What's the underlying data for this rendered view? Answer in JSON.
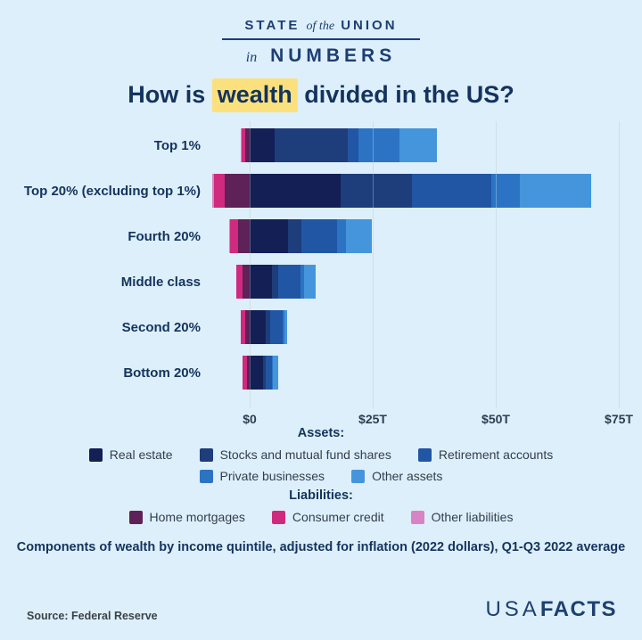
{
  "header": {
    "logo_state": "STATE",
    "logo_of_the": "of the",
    "logo_union": "UNION",
    "logo_in": "in",
    "logo_numbers": "NUMBERS"
  },
  "title": {
    "prefix": "How is",
    "highlight": "wealth",
    "suffix": "divided in the US?",
    "highlight_color": "#fbe17e"
  },
  "chart_data": {
    "type": "bar",
    "orientation": "horizontal",
    "stacked": true,
    "unit": "trillions of 2022 dollars",
    "categories": [
      "Top 1%",
      "Top 20% (excluding top 1%)",
      "Fourth 20%",
      "Middle class",
      "Second 20%",
      "Bottom 20%"
    ],
    "x_ticks": [
      "$0",
      "$25T",
      "$50T",
      "$75T"
    ],
    "x_tick_values": [
      0,
      25,
      50,
      75
    ],
    "xlim": [
      -8.7,
      80
    ],
    "grid": true,
    "legend_position": "bottom",
    "series": [
      {
        "name": "Other liabilities",
        "side": "liability",
        "color": "#d983c4",
        "values": [
          0.2,
          0.3,
          0.2,
          0.1,
          0.1,
          0.1
        ]
      },
      {
        "name": "Consumer credit",
        "side": "liability",
        "color": "#d02a7e",
        "values": [
          0.7,
          2.2,
          1.6,
          1.3,
          0.9,
          0.9
        ]
      },
      {
        "name": "Home mortgages",
        "side": "liability",
        "color": "#5e2158",
        "values": [
          0.9,
          5.1,
          2.4,
          1.4,
          0.9,
          0.5
        ]
      },
      {
        "name": "Real estate",
        "side": "asset",
        "color": "#131f55",
        "values": [
          5.1,
          18.5,
          7.8,
          4.5,
          3.3,
          2.7
        ]
      },
      {
        "name": "Stocks and mutual fund shares",
        "side": "asset",
        "color": "#1e3d7b",
        "values": [
          14.8,
          14.5,
          2.7,
          1.3,
          0.9,
          0.5
        ]
      },
      {
        "name": "Retirement accounts",
        "side": "asset",
        "color": "#2156a5",
        "values": [
          2.2,
          16.1,
          7.2,
          4.5,
          2.5,
          1.3
        ]
      },
      {
        "name": "Private businesses",
        "side": "asset",
        "color": "#2d73c4",
        "values": [
          8.3,
          5.8,
          1.8,
          0.7,
          0.3,
          0.2
        ]
      },
      {
        "name": "Other assets",
        "side": "asset",
        "color": "#4595dc",
        "values": [
          7.6,
          14.5,
          5.3,
          2.5,
          0.7,
          1.2
        ]
      }
    ]
  },
  "legend": {
    "assets_heading": "Assets:",
    "liabilities_heading": "Liabilities:",
    "assets_row1": [
      {
        "label": "Real estate",
        "color": "#131f55"
      },
      {
        "label": "Stocks and mutual fund shares",
        "color": "#1e3d7b"
      },
      {
        "label": "Retirement accounts",
        "color": "#2156a5"
      }
    ],
    "assets_row2": [
      {
        "label": "Private businesses",
        "color": "#2d73c4"
      },
      {
        "label": "Other assets",
        "color": "#4595dc"
      }
    ],
    "liabilities_row": [
      {
        "label": "Home mortgages",
        "color": "#5e2158"
      },
      {
        "label": "Consumer credit",
        "color": "#d02a7e"
      },
      {
        "label": "Other liabilities",
        "color": "#d983c4"
      }
    ]
  },
  "footer": {
    "note": "Components of wealth by income quintile, adjusted for inflation (2022 dollars), Q1-Q3 2022 average",
    "source": "Source: Federal Reserve",
    "logo_usa": "USA",
    "logo_facts": "FACTS"
  }
}
